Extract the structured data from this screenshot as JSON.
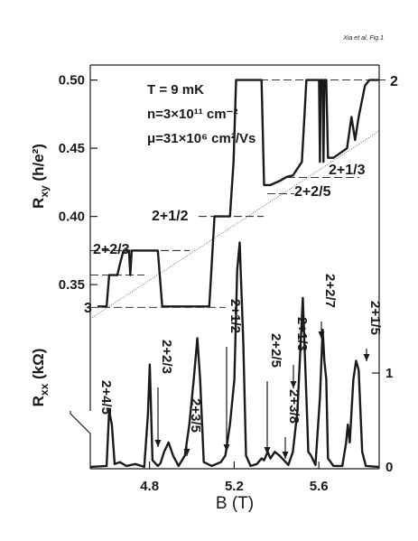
{
  "chart_data": {
    "type": "line",
    "corner_note": "Xia et al, Fig.1",
    "xlabel": "B (T)",
    "ylabel": {
      "symbol": "R",
      "sub": "xy",
      "unit": " (h/e²)"
    },
    "y2label": {
      "symbol": "R",
      "sub": "xx",
      "unit": " (kΩ)"
    },
    "conditions": [
      "T = 9 mK",
      "n=3×10¹¹ cm⁻²",
      "μ=31×10⁶ cm²/Vs"
    ],
    "xlim": [
      4.52,
      5.885
    ],
    "xticks": [
      4.8,
      5.2,
      5.6
    ],
    "ylim": [
      0.215,
      0.511
    ],
    "yticks": [
      0.35,
      {
        "value": 0.4,
        "label": "0.40"
      },
      0.45,
      {
        "value": 0.5,
        "label": "0.50"
      }
    ],
    "y2lim": [
      -0.02,
      4.28
    ],
    "y2ticks": [
      0,
      1
    ],
    "series": [
      {
        "color": "#1a1a1a",
        "x": [
          4.554,
          4.597,
          4.609,
          4.648,
          4.66,
          4.677,
          4.703,
          4.709,
          4.716,
          4.839,
          4.86,
          5.082,
          5.107,
          5.18,
          5.197,
          5.209,
          5.329,
          5.341,
          5.371,
          5.414,
          5.448,
          5.477,
          5.52,
          5.541,
          5.601,
          5.605,
          5.609,
          5.618,
          5.622,
          5.626,
          5.635,
          5.643,
          5.669,
          5.733,
          5.754,
          5.771,
          5.788,
          5.818,
          5.839,
          5.882
        ],
        "values": [
          0.334,
          0.334,
          0.357,
          0.357,
          0.365,
          0.375,
          0.375,
          0.357,
          0.375,
          0.375,
          0.334,
          0.334,
          0.4,
          0.4,
          0.44,
          0.5,
          0.5,
          0.423,
          0.423,
          0.426,
          0.429,
          0.43,
          0.44,
          0.5,
          0.5,
          0.44,
          0.5,
          0.5,
          0.44,
          0.5,
          0.5,
          0.443,
          0.443,
          0.45,
          0.473,
          0.456,
          0.473,
          0.496,
          0.5,
          0.5
        ]
      },
      {
        "color": "#1a1a1a",
        "axis": "y2",
        "x": [
          4.52,
          4.597,
          4.609,
          4.622,
          4.635,
          4.66,
          4.69,
          4.733,
          4.775,
          4.792,
          4.801,
          4.814,
          4.839,
          4.852,
          4.869,
          4.89,
          4.911,
          4.937,
          4.967,
          4.988,
          5.009,
          5.026,
          5.039,
          5.056,
          5.094,
          5.137,
          5.158,
          5.18,
          5.201,
          5.214,
          5.226,
          5.243,
          5.256,
          5.277,
          5.307,
          5.329,
          5.341,
          5.358,
          5.371,
          5.392,
          5.414,
          5.435,
          5.456,
          5.477,
          5.499,
          5.524,
          5.541,
          5.55,
          5.563,
          5.584,
          5.605,
          5.618,
          5.626,
          5.635,
          5.643,
          5.669,
          5.711,
          5.729,
          5.737,
          5.746,
          5.763,
          5.776,
          5.788,
          5.805,
          5.822,
          5.882
        ],
        "values": [
          0,
          0.01,
          0.6,
          0.45,
          0.03,
          0.05,
          0.01,
          0.03,
          0,
          0.55,
          1.09,
          0.07,
          0.01,
          0.04,
          0.16,
          0.26,
          0.12,
          0.01,
          0.12,
          0.45,
          0.93,
          1.37,
          0.93,
          0.05,
          0.01,
          0.05,
          0.12,
          0.45,
          0.93,
          2.09,
          2.39,
          1.32,
          0.12,
          0.01,
          0.03,
          0.09,
          0.07,
          0.16,
          0.09,
          0.16,
          0.12,
          0.07,
          0.02,
          0.16,
          0.6,
          1.8,
          0.74,
          0.16,
          0.12,
          0.02,
          0.74,
          1.46,
          1.13,
          0.93,
          0.09,
          0.01,
          0.01,
          0.26,
          0.45,
          0.26,
          0.93,
          1.13,
          1.03,
          0.16,
          0.01,
          0
        ]
      }
    ],
    "plateaus": [
      0.5,
      0.4286,
      0.4167,
      0.4,
      0.375,
      0.3571,
      0.3333
    ],
    "plateau_labels": [
      "2",
      "2+1/3",
      "2+2/5",
      "2+1/2",
      "2+2/3",
      "3"
    ],
    "peak_labels": [
      "2+4/5",
      "2+2/3",
      "2+3/5",
      "2+1/2",
      "2+2/5",
      "2+3/8",
      "2+1/3",
      "2+2/7",
      "2+1/5"
    ]
  }
}
